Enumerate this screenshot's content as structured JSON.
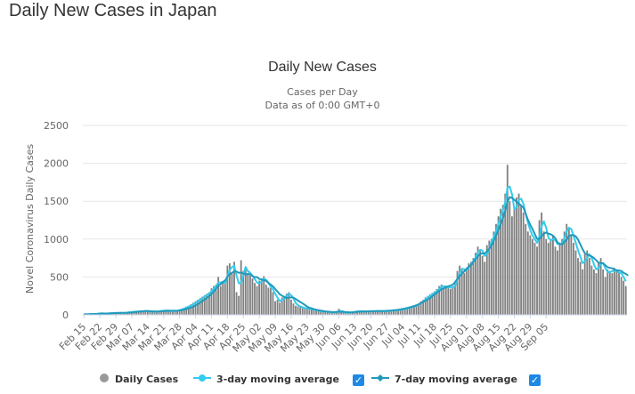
{
  "page": {
    "title": "Daily New Cases in Japan"
  },
  "legend": {
    "items": [
      "Daily Cases",
      "3-day moving average",
      "7-day moving average"
    ],
    "checks": [
      "✓",
      "✓"
    ]
  },
  "colors": {
    "bars": "#808080",
    "ma3": "#33ccee",
    "ma7": "#2299bb",
    "grid": "#e6e6e6",
    "text": "#333333",
    "axis_text": "#666666",
    "checkbox": "#1e88e5"
  },
  "chart_data": {
    "type": "bar",
    "title": "Daily New Cases",
    "subtitle": [
      "Cases per Day",
      "Data as of 0:00 GMT+0"
    ],
    "xlabel": "",
    "ylabel": "Novel Coronavirus Daily Cases",
    "ylim": [
      0,
      2500
    ],
    "yticks": [
      0,
      500,
      1000,
      1500,
      2000,
      2500
    ],
    "grid": true,
    "legend_position": "bottom",
    "x_start": "Feb 15",
    "x_end": "Sep 10",
    "xtick_labels": [
      "Feb 15",
      "Feb 22",
      "Feb 29",
      "Mar 07",
      "Mar 14",
      "Mar 21",
      "Mar 28",
      "Apr 04",
      "Apr 11",
      "Apr 18",
      "Apr 25",
      "May 02",
      "May 09",
      "May 16",
      "May 23",
      "May 30",
      "Jun 06",
      "Jun 13",
      "Jun 20",
      "Jun 27",
      "Jul 04",
      "Jul 11",
      "Jul 18",
      "Jul 25",
      "Aug 01",
      "Aug 08",
      "Aug 15",
      "Aug 22",
      "Aug 29",
      "Sep 05"
    ],
    "series": [
      {
        "name": "Daily Cases",
        "type": "bar",
        "values": [
          8,
          5,
          12,
          15,
          10,
          14,
          20,
          22,
          18,
          12,
          25,
          20,
          22,
          28,
          30,
          24,
          26,
          22,
          30,
          35,
          40,
          38,
          45,
          50,
          42,
          48,
          55,
          52,
          45,
          40,
          38,
          42,
          48,
          50,
          55,
          60,
          58,
          52,
          45,
          50,
          55,
          60,
          70,
          80,
          95,
          110,
          120,
          140,
          160,
          180,
          200,
          220,
          240,
          260,
          280,
          300,
          350,
          380,
          400,
          500,
          380,
          420,
          450,
          650,
          680,
          560,
          700,
          300,
          250,
          720,
          580,
          600,
          550,
          520,
          480,
          420,
          380,
          450,
          480,
          510,
          400,
          360,
          350,
          300,
          180,
          200,
          160,
          230,
          250,
          280,
          300,
          200,
          150,
          120,
          110,
          100,
          90,
          80,
          85,
          75,
          70,
          60,
          55,
          50,
          45,
          42,
          40,
          38,
          35,
          30,
          35,
          40,
          80,
          30,
          25,
          28,
          30,
          35,
          40,
          45,
          50,
          48,
          45,
          40,
          42,
          45,
          48,
          50,
          52,
          55,
          50,
          48,
          45,
          50,
          55,
          60,
          58,
          62,
          65,
          70,
          75,
          80,
          90,
          100,
          110,
          120,
          130,
          150,
          180,
          200,
          230,
          250,
          270,
          290,
          310,
          340,
          380,
          400,
          350,
          380,
          360,
          340,
          380,
          420,
          580,
          650,
          600,
          550,
          620,
          680,
          700,
          750,
          820,
          900,
          850,
          780,
          700,
          920,
          980,
          1000,
          1100,
          1200,
          1300,
          1400,
          1450,
          1600,
          1980,
          1500,
          1300,
          1400,
          1550,
          1600,
          1450,
          1350,
          1200,
          1100,
          1050,
          1000,
          950,
          900,
          1250,
          1350,
          1100,
          1000,
          950,
          1000,
          1050,
          900,
          850,
          950,
          1000,
          1100,
          1200,
          1150,
          1050,
          950,
          850,
          750,
          700,
          600,
          800,
          850,
          750,
          650,
          600,
          550,
          700,
          750,
          600,
          500,
          600,
          580,
          550,
          620,
          600,
          550,
          500,
          450,
          380
        ]
      },
      {
        "name": "3-day moving average",
        "type": "line",
        "values": [
          8,
          8,
          8,
          11,
          12,
          13,
          15,
          19,
          20,
          17,
          18,
          19,
          22,
          23,
          27,
          27,
          27,
          24,
          26,
          29,
          35,
          38,
          41,
          44,
          46,
          47,
          48,
          52,
          51,
          46,
          41,
          40,
          43,
          47,
          51,
          55,
          58,
          57,
          52,
          49,
          50,
          55,
          62,
          70,
          82,
          95,
          108,
          123,
          140,
          160,
          180,
          200,
          220,
          240,
          260,
          280,
          310,
          343,
          377,
          427,
          427,
          433,
          417,
          507,
          593,
          630,
          647,
          520,
          417,
          423,
          517,
          633,
          577,
          557,
          517,
          473,
          427,
          417,
          437,
          480,
          464,
          424,
          370,
          337,
          277,
          227,
          180,
          197,
          213,
          253,
          277,
          260,
          217,
          157,
          127,
          110,
          100,
          90,
          85,
          80,
          77,
          68,
          62,
          55,
          50,
          46,
          42,
          40,
          38,
          34,
          33,
          35,
          52,
          50,
          45,
          28,
          28,
          31,
          35,
          40,
          45,
          48,
          48,
          44,
          42,
          42,
          45,
          48,
          50,
          52,
          52,
          51,
          48,
          48,
          50,
          55,
          58,
          60,
          62,
          66,
          70,
          75,
          82,
          90,
          100,
          110,
          120,
          133,
          153,
          177,
          203,
          227,
          250,
          270,
          290,
          313,
          343,
          373,
          377,
          377,
          363,
          360,
          360,
          380,
          460,
          550,
          610,
          600,
          590,
          617,
          667,
          710,
          757,
          823,
          857,
          850,
          777,
          800,
          867,
          967,
          1027,
          1100,
          1200,
          1300,
          1383,
          1483,
          1677,
          1693,
          1593,
          1400,
          1417,
          1517,
          1533,
          1467,
          1333,
          1217,
          1117,
          1050,
          1000,
          950,
          1033,
          1167,
          1233,
          1150,
          1017,
          983,
          1000,
          983,
          933,
          933,
          933,
          1017,
          1100,
          1150,
          1133,
          1050,
          950,
          850,
          767,
          683,
          700,
          750,
          800,
          750,
          667,
          600,
          617,
          667,
          683,
          617,
          567,
          560,
          577,
          583,
          590,
          557,
          550,
          500,
          443
        ]
      },
      {
        "name": "7-day moving average",
        "type": "line",
        "values": [
          8,
          8,
          8,
          10,
          10,
          11,
          12,
          15,
          17,
          18,
          17,
          19,
          21,
          22,
          23,
          24,
          26,
          27,
          27,
          28,
          30,
          31,
          35,
          38,
          41,
          45,
          47,
          50,
          50,
          48,
          46,
          45,
          44,
          45,
          47,
          49,
          51,
          53,
          54,
          54,
          54,
          54,
          57,
          62,
          69,
          78,
          87,
          96,
          107,
          124,
          141,
          161,
          181,
          201,
          223,
          247,
          277,
          309,
          342,
          386,
          404,
          433,
          455,
          503,
          533,
          555,
          574,
          571,
          555,
          557,
          545,
          529,
          543,
          534,
          513,
          497,
          499,
          474,
          467,
          458,
          448,
          421,
          401,
          375,
          342,
          307,
          271,
          253,
          234,
          223,
          228,
          231,
          227,
          209,
          188,
          170,
          152,
          131,
          109,
          94,
          85,
          75,
          68,
          62,
          56,
          51,
          46,
          43,
          40,
          37,
          36,
          40,
          43,
          40,
          37,
          36,
          35,
          32,
          33,
          37,
          40,
          42,
          44,
          45,
          46,
          47,
          47,
          48,
          49,
          50,
          50,
          50,
          51,
          53,
          55,
          57,
          60,
          63,
          67,
          72,
          78,
          84,
          91,
          99,
          107,
          116,
          126,
          139,
          155,
          170,
          186,
          203,
          221,
          245,
          270,
          293,
          315,
          337,
          350,
          363,
          376,
          386,
          399,
          433,
          474,
          509,
          543,
          573,
          607,
          635,
          656,
          696,
          735,
          771,
          803,
          811,
          810,
          836,
          872,
          915,
          975,
          1049,
          1119,
          1194,
          1273,
          1369,
          1490,
          1553,
          1544,
          1519,
          1491,
          1469,
          1443,
          1415,
          1337,
          1254,
          1189,
          1131,
          1068,
          1003,
          1001,
          1041,
          1071,
          1087,
          1071,
          1064,
          1045,
          1012,
          955,
          936,
          930,
          960,
          993,
          1039,
          1054,
          1051,
          1036,
          993,
          929,
          868,
          811,
          797,
          784,
          771,
          749,
          720,
          689,
          682,
          682,
          655,
          629,
          620,
          614,
          599,
          586,
          585,
          580,
          555,
          540,
          518
        ]
      }
    ]
  }
}
